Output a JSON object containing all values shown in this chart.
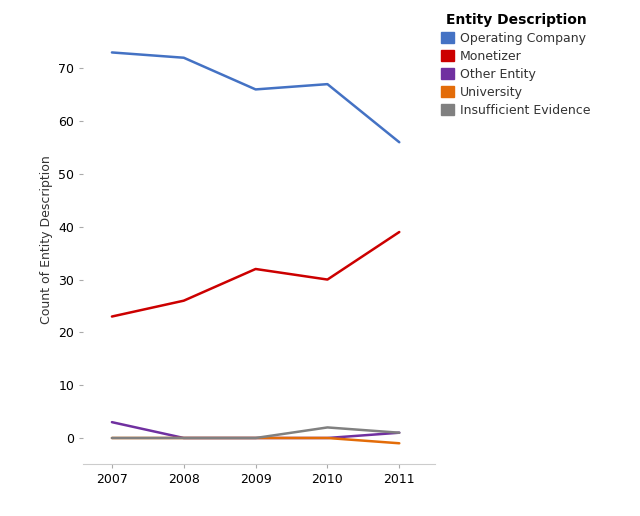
{
  "years": [
    2007,
    2008,
    2009,
    2010,
    2011
  ],
  "series": [
    {
      "label": "Operating Company",
      "color": "#4472C4",
      "values": [
        73,
        72,
        66,
        67,
        56
      ]
    },
    {
      "label": "Monetizer",
      "color": "#CC0000",
      "values": [
        23,
        26,
        32,
        30,
        39
      ]
    },
    {
      "label": "Other Entity",
      "color": "#7030A0",
      "values": [
        3,
        0,
        0,
        0,
        1
      ]
    },
    {
      "label": "University",
      "color": "#E36C09",
      "values": [
        0,
        0,
        0,
        0,
        -1
      ]
    },
    {
      "label": "Insufficient Evidence",
      "color": "#808080",
      "values": [
        0,
        0,
        0,
        2,
        1
      ]
    }
  ],
  "ylabel": "Count of Entity Description",
  "legend_title": "Entity Description",
  "ylim": [
    -5,
    80
  ],
  "yticks": [
    0,
    10,
    20,
    30,
    40,
    50,
    60,
    70
  ],
  "xlim": [
    2006.6,
    2011.5
  ],
  "background_color": "#FFFFFF",
  "legend_fontsize": 9,
  "axis_fontsize": 9,
  "tick_fontsize": 9
}
